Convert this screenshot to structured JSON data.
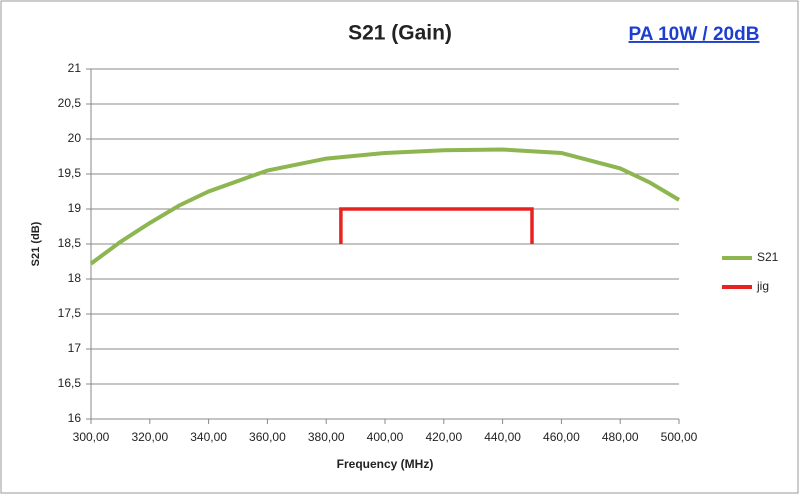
{
  "chart_data": {
    "type": "line",
    "title": "S21 (Gain)",
    "annotation": "PA 10W / 20dB",
    "x_label": "Frequency (MHz)",
    "y_label": "S21 (dB)",
    "xlim": [
      300,
      500
    ],
    "ylim": [
      16,
      21
    ],
    "xticks": [
      {
        "value": 300,
        "label": "300,00"
      },
      {
        "value": 320,
        "label": "320,00"
      },
      {
        "value": 340,
        "label": "340,00"
      },
      {
        "value": 360,
        "label": "360,00"
      },
      {
        "value": 380,
        "label": "380,00"
      },
      {
        "value": 400,
        "label": "400,00"
      },
      {
        "value": 420,
        "label": "420,00"
      },
      {
        "value": 440,
        "label": "440,00"
      },
      {
        "value": 460,
        "label": "460,00"
      },
      {
        "value": 480,
        "label": "480,00"
      },
      {
        "value": 500,
        "label": "500,00"
      }
    ],
    "yticks": [
      16,
      {
        "value": 16.5,
        "label": "16,5"
      },
      17,
      {
        "value": 17.5,
        "label": "17,5"
      },
      18,
      {
        "value": 18.5,
        "label": "18,5"
      },
      19,
      {
        "value": 19.5,
        "label": "19,5"
      },
      20,
      {
        "value": 20.5,
        "label": "20,5"
      },
      21
    ],
    "grid": true,
    "series": [
      {
        "name": "S21",
        "color": "#8db550",
        "x": [
          300,
          310,
          320,
          330,
          340,
          360,
          380,
          400,
          420,
          440,
          460,
          480,
          490,
          500
        ],
        "values": [
          18.22,
          18.53,
          18.8,
          19.05,
          19.25,
          19.55,
          19.72,
          19.8,
          19.84,
          19.85,
          19.8,
          19.58,
          19.38,
          19.13
        ]
      },
      {
        "name": "jig",
        "color": "#e8231f",
        "x": [
          385,
          385,
          450,
          450
        ],
        "values": [
          18.5,
          19,
          19,
          18.5
        ]
      }
    ]
  }
}
